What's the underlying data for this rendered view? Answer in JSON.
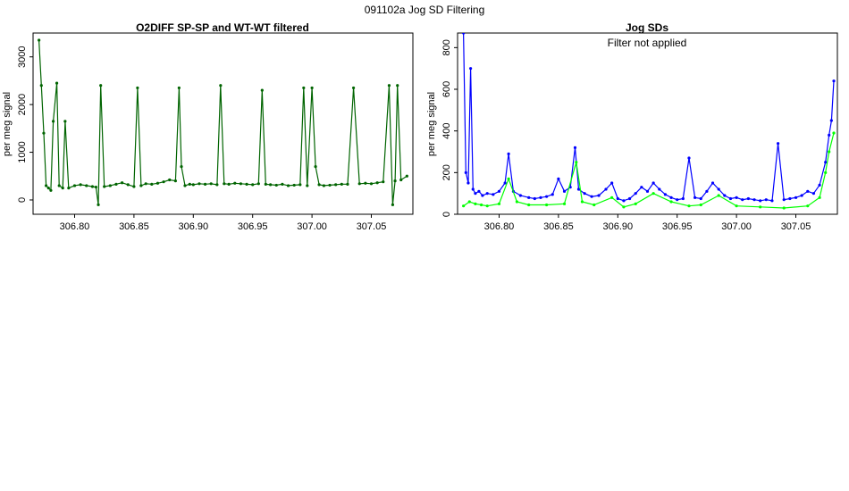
{
  "page": {
    "title": "091102a   Jog SD Filtering"
  },
  "colors": {
    "green_dark": "#006400",
    "blue": "#0000ff",
    "green_light": "#00ff00",
    "orange": "#ff4500",
    "black": "#000000"
  },
  "chart_data": [
    {
      "type": "scatter",
      "title": "O2DIFF SP-SP and WT-WT filtered",
      "subtitle": "",
      "xlabel": "",
      "ylabel": "per meg signal",
      "xlim": [
        306.765,
        307.085
      ],
      "ylim": [
        -300,
        3500
      ],
      "xticks": [
        "306.80",
        "306.85",
        "306.90",
        "306.95",
        "307.00",
        "307.05"
      ],
      "xtick_values": [
        306.8,
        306.85,
        306.9,
        306.95,
        307.0,
        307.05
      ],
      "yticks": [
        "0",
        "1000",
        "2000",
        "3000"
      ],
      "ytick_values": [
        0,
        1000,
        2000,
        3000
      ],
      "grid": false,
      "legend": "none",
      "series": [
        {
          "color": "#006400",
          "x": [
            306.77,
            306.772,
            306.774,
            306.776,
            306.778,
            306.78,
            306.782,
            306.785,
            306.787,
            306.79,
            306.792,
            306.795,
            306.8,
            306.805,
            306.81,
            306.815,
            306.818,
            306.82,
            306.822,
            306.825,
            306.83,
            306.835,
            306.84,
            306.845,
            306.85,
            306.853,
            306.856,
            306.86,
            306.865,
            306.87,
            306.875,
            306.88,
            306.885,
            306.888,
            306.89,
            306.893,
            306.897,
            306.9,
            306.905,
            306.91,
            306.915,
            306.92,
            306.923,
            306.926,
            306.93,
            306.935,
            306.94,
            306.945,
            306.95,
            306.955,
            306.958,
            306.961,
            306.965,
            306.97,
            306.975,
            306.98,
            306.985,
            306.99,
            306.993,
            306.996,
            307.0,
            307.003,
            307.006,
            307.01,
            307.015,
            307.02,
            307.025,
            307.03,
            307.035,
            307.04,
            307.045,
            307.05,
            307.055,
            307.06,
            307.065,
            307.068,
            307.07,
            307.072,
            307.075,
            307.08
          ],
          "y": [
            3350,
            2400,
            1400,
            300,
            250,
            200,
            1650,
            2450,
            300,
            250,
            1650,
            250,
            300,
            320,
            300,
            280,
            270,
            -100,
            2400,
            280,
            300,
            330,
            360,
            320,
            280,
            2350,
            300,
            340,
            330,
            350,
            380,
            420,
            400,
            2350,
            700,
            300,
            330,
            320,
            340,
            330,
            340,
            320,
            2400,
            340,
            330,
            350,
            340,
            330,
            320,
            340,
            2300,
            330,
            320,
            310,
            330,
            300,
            310,
            320,
            2350,
            300,
            2350,
            700,
            320,
            300,
            310,
            320,
            330,
            330,
            2350,
            340,
            350,
            340,
            360,
            380,
            2400,
            -100,
            400,
            2400,
            420,
            500
          ]
        }
      ]
    },
    {
      "type": "line",
      "title": "Jog SDs",
      "subtitle": "",
      "annotation": "Filter not applied",
      "xlabel": "",
      "ylabel": "per meg signal",
      "xlim": [
        306.765,
        307.085
      ],
      "ylim": [
        0,
        870
      ],
      "xticks": [
        "306.80",
        "306.85",
        "306.90",
        "306.95",
        "307.00",
        "307.05"
      ],
      "xtick_values": [
        306.8,
        306.85,
        306.9,
        306.95,
        307.0,
        307.05
      ],
      "yticks": [
        "0",
        "200",
        "400",
        "600",
        "800"
      ],
      "ytick_values": [
        0,
        200,
        400,
        600,
        800
      ],
      "grid": false,
      "legend": "none",
      "series": [
        {
          "color": "#0000ff",
          "x": [
            306.77,
            306.772,
            306.774,
            306.776,
            306.778,
            306.78,
            306.783,
            306.786,
            306.79,
            306.795,
            306.8,
            306.805,
            306.808,
            306.812,
            306.818,
            306.825,
            306.83,
            306.835,
            306.84,
            306.845,
            306.85,
            306.855,
            306.86,
            306.864,
            306.867,
            306.872,
            306.878,
            306.884,
            306.89,
            306.895,
            306.9,
            306.905,
            306.91,
            306.915,
            306.92,
            306.925,
            306.93,
            306.935,
            306.94,
            306.945,
            306.95,
            306.955,
            306.96,
            306.965,
            306.97,
            306.975,
            306.98,
            306.985,
            306.99,
            306.995,
            307.0,
            307.005,
            307.01,
            307.015,
            307.02,
            307.025,
            307.03,
            307.035,
            307.04,
            307.045,
            307.05,
            307.055,
            307.06,
            307.065,
            307.07,
            307.075,
            307.078,
            307.08,
            307.082
          ],
          "y": [
            870,
            200,
            150,
            700,
            120,
            100,
            110,
            90,
            100,
            95,
            110,
            150,
            290,
            110,
            90,
            80,
            75,
            80,
            85,
            95,
            170,
            110,
            130,
            320,
            120,
            100,
            85,
            90,
            120,
            150,
            75,
            65,
            75,
            100,
            130,
            110,
            150,
            120,
            95,
            80,
            70,
            75,
            270,
            80,
            75,
            110,
            150,
            120,
            90,
            75,
            80,
            70,
            75,
            70,
            65,
            70,
            65,
            340,
            70,
            75,
            80,
            90,
            110,
            100,
            140,
            250,
            380,
            450,
            640
          ]
        },
        {
          "color": "#00ff00",
          "x": [
            306.77,
            306.775,
            306.78,
            306.785,
            306.79,
            306.8,
            306.808,
            306.815,
            306.825,
            306.84,
            306.855,
            306.865,
            306.87,
            306.88,
            306.895,
            306.905,
            306.915,
            306.93,
            306.945,
            306.96,
            306.97,
            306.985,
            307.0,
            307.02,
            307.04,
            307.06,
            307.07,
            307.075,
            307.078,
            307.082
          ],
          "y": [
            40,
            60,
            50,
            45,
            40,
            50,
            170,
            60,
            45,
            45,
            50,
            250,
            60,
            45,
            80,
            35,
            50,
            100,
            60,
            40,
            45,
            90,
            40,
            35,
            30,
            40,
            80,
            200,
            300,
            390
          ]
        }
      ]
    }
  ]
}
